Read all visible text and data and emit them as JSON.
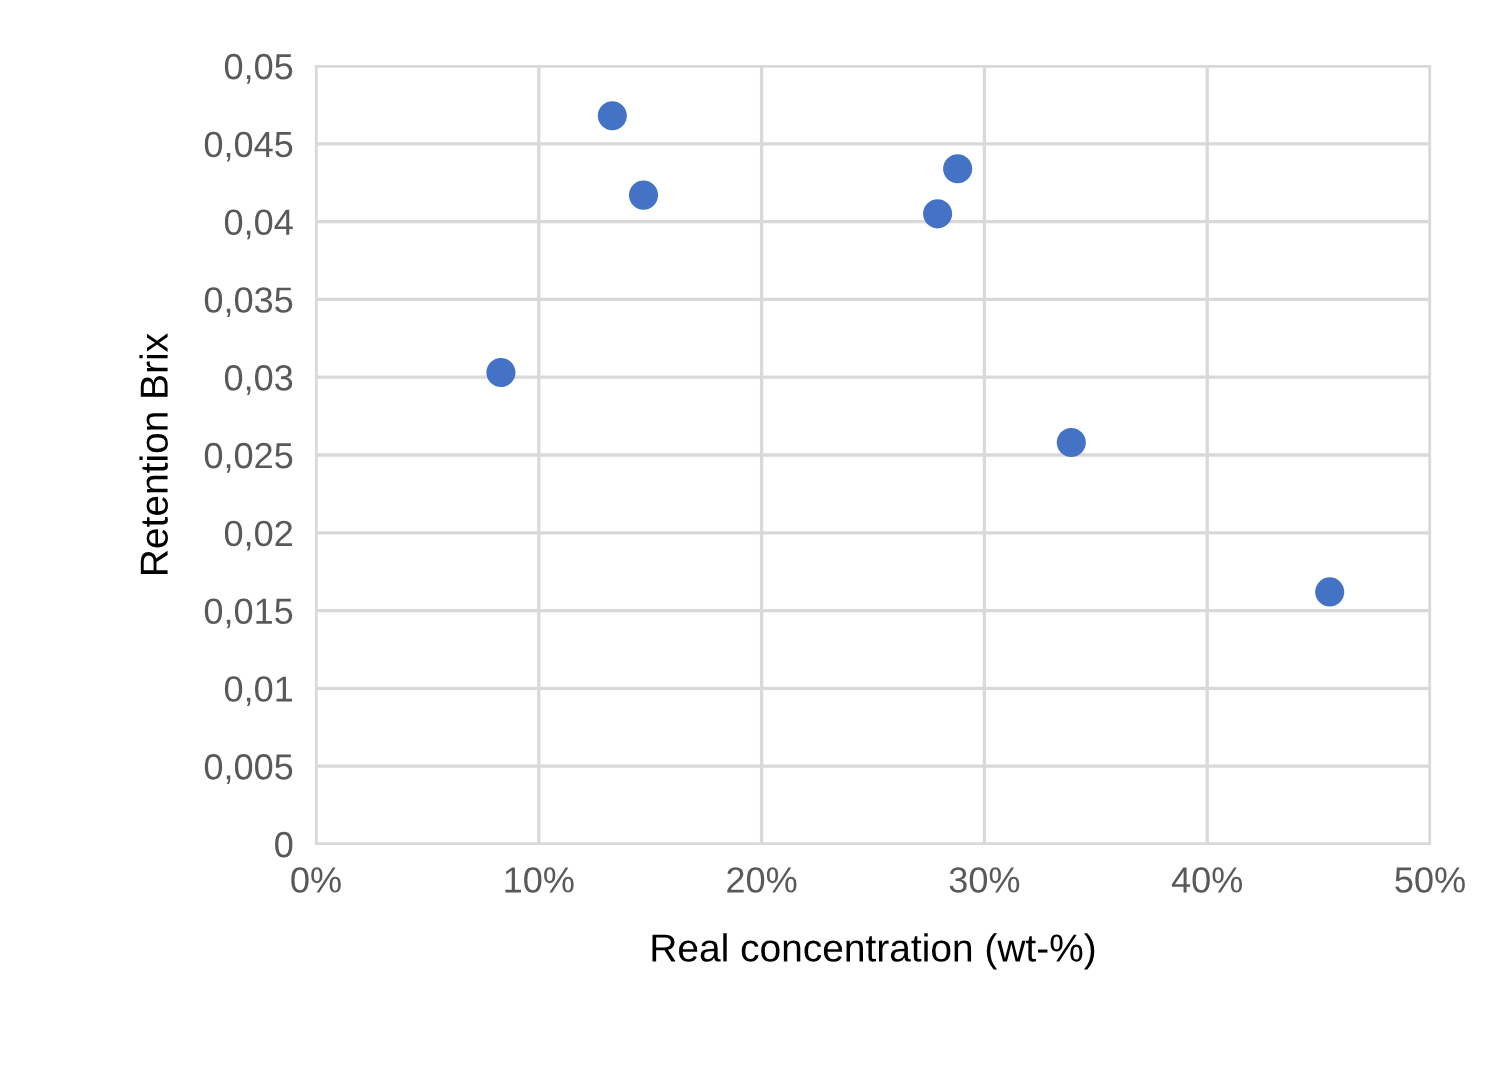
{
  "chart_data": {
    "type": "scatter",
    "xlabel": "Real concentration (wt-%)",
    "ylabel": "Retention Brix",
    "x": [
      8.3,
      13.3,
      14.7,
      27.9,
      28.8,
      33.9,
      45.5
    ],
    "series": [
      {
        "color": "#4472c4",
        "values": [
          0.0303,
          0.0468,
          0.0417,
          0.0405,
          0.0434,
          0.0258,
          0.0162
        ]
      }
    ],
    "xlim": [
      0,
      50
    ],
    "xticks": [
      {
        "value": 0,
        "label": "0%"
      },
      {
        "value": 10,
        "label": "10%"
      },
      {
        "value": 20,
        "label": "20%"
      },
      {
        "value": 30,
        "label": "30%"
      },
      {
        "value": 40,
        "label": "40%"
      },
      {
        "value": 50,
        "label": "50%"
      }
    ],
    "ylim": [
      0,
      0.05
    ],
    "yticks": [
      {
        "value": 0,
        "label": "0"
      },
      {
        "value": 0.005,
        "label": "0,005"
      },
      {
        "value": 0.01,
        "label": "0,01"
      },
      {
        "value": 0.015,
        "label": "0,015"
      },
      {
        "value": 0.02,
        "label": "0,02"
      },
      {
        "value": 0.025,
        "label": "0,025"
      },
      {
        "value": 0.03,
        "label": "0,03"
      },
      {
        "value": 0.035,
        "label": "0,035"
      },
      {
        "value": 0.04,
        "label": "0,04"
      },
      {
        "value": 0.045,
        "label": "0,045"
      },
      {
        "value": 0.05,
        "label": "0,05"
      }
    ],
    "grid": true,
    "marker": "circle"
  }
}
